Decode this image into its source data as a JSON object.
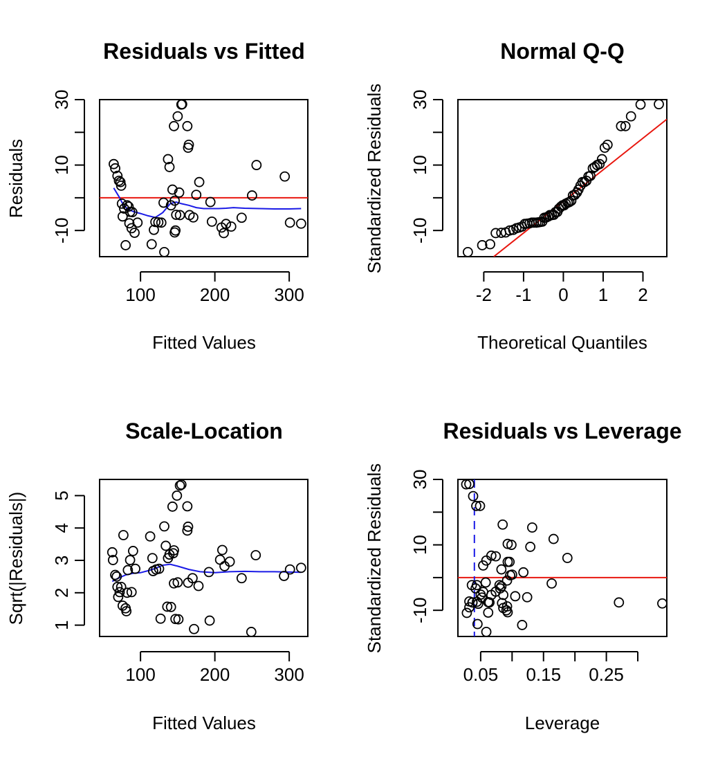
{
  "chart_data": [
    {
      "type": "scatter",
      "title": "Residuals vs Fitted",
      "xlabel": "Fitted Values",
      "ylabel": "Residuals",
      "xlim": [
        45,
        325
      ],
      "ylim": [
        -18,
        30
      ],
      "xticks": [
        100,
        200,
        300
      ],
      "xtick_labels": [
        "100",
        "200",
        "300"
      ],
      "yticks": [
        -10,
        0,
        10,
        20,
        30
      ],
      "ytick_labels": [
        "-10",
        "",
        "10",
        "",
        "30"
      ],
      "points": [
        [
          64,
          10.3
        ],
        [
          66,
          9
        ],
        [
          69,
          6.7
        ],
        [
          71,
          5.2
        ],
        [
          73,
          4.8
        ],
        [
          74,
          3.7
        ],
        [
          75,
          -1.8
        ],
        [
          76,
          -5.7
        ],
        [
          78,
          -3.3
        ],
        [
          80,
          -14.5
        ],
        [
          82,
          -2.3
        ],
        [
          84,
          -2.7
        ],
        [
          85,
          -7.8
        ],
        [
          86,
          -4.3
        ],
        [
          88,
          -9.3
        ],
        [
          89,
          -4.4
        ],
        [
          92,
          -10.7
        ],
        [
          96,
          -7.6
        ],
        [
          115,
          -14.2
        ],
        [
          118,
          -9.8
        ],
        [
          120,
          -7.4
        ],
        [
          124,
          -7.5
        ],
        [
          128,
          -7.6
        ],
        [
          131,
          -1.5
        ],
        [
          132,
          -16.6
        ],
        [
          137,
          11.8
        ],
        [
          139,
          9.4
        ],
        [
          141,
          -2.3
        ],
        [
          143,
          2.5
        ],
        [
          145,
          21.9
        ],
        [
          146,
          -0.9
        ],
        [
          146,
          -10.6
        ],
        [
          147,
          -10
        ],
        [
          148,
          -5.2
        ],
        [
          150,
          24.9
        ],
        [
          152,
          1.6
        ],
        [
          153,
          -5.3
        ],
        [
          155,
          28.5
        ],
        [
          156,
          28.6
        ],
        [
          163,
          21.9
        ],
        [
          164,
          15.3
        ],
        [
          165,
          16.2
        ],
        [
          166,
          -5.3
        ],
        [
          171,
          -6
        ],
        [
          175,
          0.9
        ],
        [
          179,
          4.8
        ],
        [
          194,
          -1.3
        ],
        [
          196,
          -7.3
        ],
        [
          209,
          -9.1
        ],
        [
          212,
          -10.8
        ],
        [
          215,
          -8
        ],
        [
          222,
          -8.8
        ],
        [
          236,
          -6.1
        ],
        [
          250,
          0.7
        ],
        [
          256,
          10
        ],
        [
          294,
          6.5
        ],
        [
          301,
          -7.6
        ],
        [
          316,
          -7.9
        ]
      ],
      "smooth": [
        [
          64,
          3
        ],
        [
          68,
          1.5
        ],
        [
          72,
          0
        ],
        [
          76,
          -1.8
        ],
        [
          82,
          -3.3
        ],
        [
          90,
          -4.2
        ],
        [
          100,
          -4.8
        ],
        [
          110,
          -5.5
        ],
        [
          120,
          -6
        ],
        [
          130,
          -4.5
        ],
        [
          140,
          -1.8
        ],
        [
          148,
          -1.3
        ],
        [
          155,
          -1.8
        ],
        [
          165,
          -2.3
        ],
        [
          175,
          -3
        ],
        [
          185,
          -3.3
        ],
        [
          195,
          -3.3
        ],
        [
          205,
          -3.3
        ],
        [
          215,
          -3.2
        ],
        [
          225,
          -3
        ],
        [
          240,
          -3.2
        ],
        [
          260,
          -3.3
        ],
        [
          280,
          -3.4
        ],
        [
          300,
          -3.4
        ],
        [
          316,
          -3.3
        ]
      ],
      "hline": 0
    },
    {
      "type": "scatter",
      "title": "Normal Q-Q",
      "xlabel": "Theoretical Quantiles",
      "ylabel": "Standardized Residuals",
      "xlim": [
        -2.65,
        2.6
      ],
      "ylim": [
        -18,
        30
      ],
      "xticks": [
        -2,
        -1,
        0,
        1,
        2
      ],
      "xtick_labels": [
        "-2",
        "-1",
        "0",
        "1",
        "2"
      ],
      "yticks": [
        -10,
        0,
        10,
        20,
        30
      ],
      "ytick_labels": [
        "-10",
        "",
        "10",
        "",
        "30"
      ],
      "points": [
        [
          -2.4,
          -16.6
        ],
        [
          -2.04,
          -14.5
        ],
        [
          -1.84,
          -14.2
        ],
        [
          -1.7,
          -10.8
        ],
        [
          -1.56,
          -10.7
        ],
        [
          -1.45,
          -10.6
        ],
        [
          -1.35,
          -10
        ],
        [
          -1.26,
          -9.8
        ],
        [
          -1.18,
          -9.3
        ],
        [
          -1.11,
          -9.1
        ],
        [
          -1.04,
          -8.8
        ],
        [
          -0.97,
          -8
        ],
        [
          -0.91,
          -7.9
        ],
        [
          -0.85,
          -7.8
        ],
        [
          -0.79,
          -7.6
        ],
        [
          -0.74,
          -7.6
        ],
        [
          -0.68,
          -7.6
        ],
        [
          -0.63,
          -7.5
        ],
        [
          -0.58,
          -7.4
        ],
        [
          -0.53,
          -7.3
        ],
        [
          -0.48,
          -6.1
        ],
        [
          -0.43,
          -6
        ],
        [
          -0.38,
          -5.7
        ],
        [
          -0.34,
          -5.3
        ],
        [
          -0.29,
          -5.3
        ],
        [
          -0.24,
          -5.2
        ],
        [
          -0.2,
          -4.4
        ],
        [
          -0.15,
          -4.3
        ],
        [
          -0.11,
          -3.3
        ],
        [
          -0.06,
          -2.7
        ],
        [
          -0.02,
          -2.3
        ],
        [
          0.02,
          -2.3
        ],
        [
          0.06,
          -1.8
        ],
        [
          0.11,
          -1.5
        ],
        [
          0.15,
          -1.3
        ],
        [
          0.2,
          -0.9
        ],
        [
          0.24,
          0.7
        ],
        [
          0.29,
          0.9
        ],
        [
          0.34,
          1.6
        ],
        [
          0.38,
          2.5
        ],
        [
          0.43,
          3.7
        ],
        [
          0.48,
          4.8
        ],
        [
          0.53,
          4.8
        ],
        [
          0.58,
          5.2
        ],
        [
          0.63,
          6.5
        ],
        [
          0.68,
          6.7
        ],
        [
          0.74,
          9
        ],
        [
          0.79,
          9.4
        ],
        [
          0.85,
          10
        ],
        [
          0.91,
          10.3
        ],
        [
          0.97,
          11.8
        ],
        [
          1.04,
          15.3
        ],
        [
          1.11,
          16.2
        ],
        [
          1.45,
          21.9
        ],
        [
          1.56,
          21.9
        ],
        [
          1.7,
          24.9
        ],
        [
          1.94,
          28.5
        ],
        [
          2.4,
          28.6
        ]
      ],
      "refline": [
        [
          -1.75,
          -18
        ],
        [
          2.6,
          24
        ]
      ]
    },
    {
      "type": "scatter",
      "title": "Scale-Location",
      "xlabel": "Fitted Values",
      "ylabel": "Sqrt(|Residuals|)",
      "xlim": [
        45,
        325
      ],
      "ylim": [
        0.65,
        5.5
      ],
      "xticks": [
        100,
        200,
        300
      ],
      "xtick_labels": [
        "100",
        "200",
        "300"
      ],
      "yticks": [
        1,
        2,
        3,
        4,
        5
      ],
      "ytick_labels": [
        "1",
        "2",
        "3",
        "4",
        "5"
      ],
      "points": [
        [
          62,
          3.25
        ],
        [
          63,
          3.01
        ],
        [
          66,
          2.55
        ],
        [
          68,
          2.5
        ],
        [
          69,
          2.18
        ],
        [
          70,
          1.87
        ],
        [
          72,
          2.02
        ],
        [
          74,
          2.18
        ],
        [
          76,
          1.6
        ],
        [
          77,
          3.78
        ],
        [
          80,
          1.52
        ],
        [
          81,
          1.43
        ],
        [
          82,
          2.0
        ],
        [
          83,
          2.7
        ],
        [
          86,
          3.01
        ],
        [
          88,
          2.02
        ],
        [
          90,
          3.29
        ],
        [
          93,
          2.74
        ],
        [
          113,
          3.74
        ],
        [
          116,
          3.07
        ],
        [
          117,
          2.67
        ],
        [
          121,
          2.72
        ],
        [
          125,
          2.74
        ],
        [
          127,
          1.2
        ],
        [
          132,
          4.05
        ],
        [
          134,
          3.45
        ],
        [
          136,
          1.57
        ],
        [
          137,
          3.07
        ],
        [
          139,
          3.18
        ],
        [
          141,
          1.56
        ],
        [
          143,
          4.66
        ],
        [
          144,
          3.22
        ],
        [
          145,
          3.31
        ],
        [
          145,
          2.29
        ],
        [
          147,
          1.19
        ],
        [
          149,
          5.0
        ],
        [
          150,
          2.32
        ],
        [
          151,
          1.18
        ],
        [
          153,
          5.31
        ],
        [
          155,
          5.34
        ],
        [
          163,
          3.92
        ],
        [
          163,
          4.67
        ],
        [
          164,
          4.04
        ],
        [
          164,
          2.31
        ],
        [
          170,
          2.45
        ],
        [
          172,
          0.88
        ],
        [
          178,
          2.21
        ],
        [
          192,
          2.64
        ],
        [
          193,
          1.14
        ],
        [
          207,
          3.02
        ],
        [
          210,
          3.32
        ],
        [
          213,
          2.82
        ],
        [
          220,
          2.96
        ],
        [
          236,
          2.45
        ],
        [
          249,
          0.79
        ],
        [
          255,
          3.16
        ],
        [
          293,
          2.52
        ],
        [
          301,
          2.72
        ],
        [
          316,
          2.77
        ]
      ],
      "smooth": [
        [
          62,
          2.35
        ],
        [
          70,
          2.45
        ],
        [
          80,
          2.55
        ],
        [
          90,
          2.6
        ],
        [
          100,
          2.62
        ],
        [
          110,
          2.68
        ],
        [
          120,
          2.75
        ],
        [
          130,
          2.85
        ],
        [
          140,
          2.88
        ],
        [
          150,
          2.82
        ],
        [
          165,
          2.72
        ],
        [
          180,
          2.65
        ],
        [
          200,
          2.62
        ],
        [
          220,
          2.65
        ],
        [
          240,
          2.66
        ],
        [
          260,
          2.65
        ],
        [
          280,
          2.65
        ],
        [
          300,
          2.64
        ],
        [
          316,
          2.63
        ]
      ]
    },
    {
      "type": "scatter",
      "title": "Residuals vs Leverage",
      "xlabel": "Leverage",
      "ylabel": "Standardized Residuals",
      "xlim": [
        0.0138,
        0.3462
      ],
      "ylim": [
        -18,
        30
      ],
      "xticks": [
        0.05,
        0.1,
        0.15,
        0.2,
        0.25,
        0.3
      ],
      "xtick_labels": [
        "0.05",
        "",
        "0.15",
        "",
        "0.25",
        ""
      ],
      "yticks": [
        -10,
        0,
        10,
        20,
        30
      ],
      "ytick_labels": [
        "-10",
        "",
        "10",
        "",
        "30"
      ],
      "points": [
        [
          0.027,
          28.5
        ],
        [
          0.032,
          28.6
        ],
        [
          0.038,
          24.9
        ],
        [
          0.043,
          21.9
        ],
        [
          0.049,
          21.9
        ],
        [
          0.085,
          16.2
        ],
        [
          0.132,
          15.3
        ],
        [
          0.166,
          11.8
        ],
        [
          0.093,
          10.3
        ],
        [
          0.099,
          10.0
        ],
        [
          0.129,
          9.4
        ],
        [
          0.067,
          6.7
        ],
        [
          0.074,
          6.5
        ],
        [
          0.188,
          6.0
        ],
        [
          0.059,
          5.2
        ],
        [
          0.096,
          4.8
        ],
        [
          0.093,
          4.8
        ],
        [
          0.054,
          3.7
        ],
        [
          0.083,
          2.5
        ],
        [
          0.118,
          1.6
        ],
        [
          0.1,
          0.9
        ],
        [
          0.097,
          0.7
        ],
        [
          0.092,
          -0.9
        ],
        [
          0.058,
          -1.5
        ],
        [
          0.163,
          -1.8
        ],
        [
          0.036,
          -2.3
        ],
        [
          0.044,
          -2.3
        ],
        [
          0.08,
          -2.3
        ],
        [
          0.083,
          -2.7
        ],
        [
          0.042,
          -3.3
        ],
        [
          0.081,
          -3.3
        ],
        [
          0.054,
          -4.4
        ],
        [
          0.074,
          -4.3
        ],
        [
          0.05,
          -5.2
        ],
        [
          0.067,
          -5.3
        ],
        [
          0.086,
          -5.3
        ],
        [
          0.105,
          -5.7
        ],
        [
          0.124,
          -6.0
        ],
        [
          0.052,
          -6.1
        ],
        [
          0.044,
          -7.4
        ],
        [
          0.032,
          -7.3
        ],
        [
          0.037,
          -7.6
        ],
        [
          0.062,
          -7.5
        ],
        [
          0.037,
          -7.6
        ],
        [
          0.064,
          -7.6
        ],
        [
          0.084,
          -7.8
        ],
        [
          0.27,
          -7.6
        ],
        [
          0.339,
          -7.9
        ],
        [
          0.092,
          -8.8
        ],
        [
          0.046,
          -8.0
        ],
        [
          0.032,
          -9.1
        ],
        [
          0.086,
          -9.3
        ],
        [
          0.091,
          -10.0
        ],
        [
          0.028,
          -10.8
        ],
        [
          0.062,
          -10.7
        ],
        [
          0.093,
          -10.6
        ],
        [
          0.116,
          -14.5
        ],
        [
          0.045,
          -14.2
        ],
        [
          0.059,
          -16.6
        ]
      ],
      "hline": 0,
      "vline": 0.04
    }
  ]
}
